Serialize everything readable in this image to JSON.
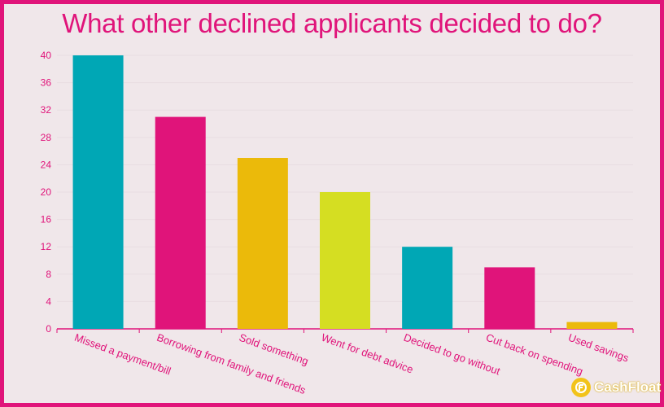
{
  "title": "What other declined applicants decided to do?",
  "logo": {
    "text": "CashFloat",
    "icon": "cashfloat-logo-icon"
  },
  "colors": {
    "teal": "#00a7b5",
    "pink": "#e0147a",
    "gold": "#ebba0a",
    "lime": "#d5de22",
    "background": "#f0e7ea",
    "axis_text": "#e0147a"
  },
  "chart_data": {
    "type": "bar",
    "title": "What other declined applicants decided to do?",
    "xlabel": "",
    "ylabel": "",
    "ylim": [
      0,
      40
    ],
    "yticks": [
      0,
      4,
      8,
      12,
      16,
      20,
      24,
      28,
      32,
      36,
      40
    ],
    "grid": true,
    "categories": [
      "Missed a payment/bill",
      "Borrowing from family and friends",
      "Sold something",
      "Went for debt advice",
      "Decided to go without",
      "Cut back on spending",
      "Used savings"
    ],
    "values": [
      40,
      31,
      25,
      20,
      12,
      9,
      1
    ],
    "bar_colors": [
      "#00a7b5",
      "#e0147a",
      "#ebba0a",
      "#d5de22",
      "#00a7b5",
      "#e0147a",
      "#ebba0a"
    ]
  }
}
